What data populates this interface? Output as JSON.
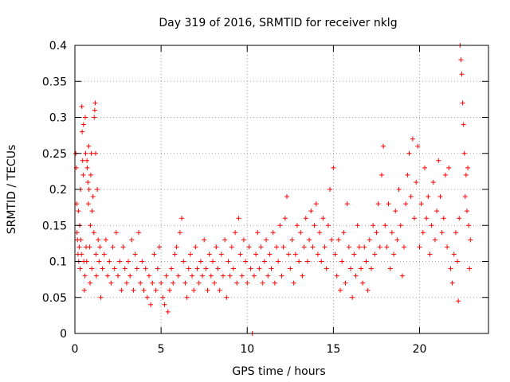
{
  "chart_data": {
    "type": "scatter",
    "title": "Day 319 of 2016, SRMTID for receiver nklg",
    "xlabel": "GPS time / hours",
    "ylabel": "SRMTID / TECUs",
    "xlim": [
      0,
      24
    ],
    "ylim": [
      0,
      0.4
    ],
    "xticks": [
      0,
      5,
      10,
      15,
      20
    ],
    "yticks": [
      0,
      0.05,
      0.1,
      0.15,
      0.2,
      0.25,
      0.3,
      0.35,
      0.4
    ],
    "xtick_labels": [
      "0",
      "5",
      "10",
      "15",
      "20"
    ],
    "ytick_labels": [
      "0",
      "0.05",
      "0.1",
      "0.15",
      "0.2",
      "0.25",
      "0.3",
      "0.35",
      "0.4"
    ],
    "grid": true,
    "marker": "+",
    "color": "#ff0000",
    "series": [
      {
        "name": "SRMTID",
        "points": [
          [
            0.05,
            0.25
          ],
          [
            0.08,
            0.23
          ],
          [
            0.1,
            0.18
          ],
          [
            0.12,
            0.14
          ],
          [
            0.15,
            0.13
          ],
          [
            0.18,
            0.11
          ],
          [
            0.2,
            0.17
          ],
          [
            0.22,
            0.1
          ],
          [
            0.25,
            0.12
          ],
          [
            0.28,
            0.15
          ],
          [
            0.3,
            0.09
          ],
          [
            0.33,
            0.2
          ],
          [
            0.35,
            0.13
          ],
          [
            0.38,
            0.11
          ],
          [
            0.4,
            0.315
          ],
          [
            0.42,
            0.28
          ],
          [
            0.45,
            0.24
          ],
          [
            0.48,
            0.22
          ],
          [
            0.5,
            0.29
          ],
          [
            0.52,
            0.1
          ],
          [
            0.55,
            0.06
          ],
          [
            0.58,
            0.08
          ],
          [
            0.6,
            0.3
          ],
          [
            0.62,
            0.25
          ],
          [
            0.65,
            0.12
          ],
          [
            0.68,
            0.1
          ],
          [
            0.7,
            0.24
          ],
          [
            0.72,
            0.23
          ],
          [
            0.75,
            0.21
          ],
          [
            0.78,
            0.18
          ],
          [
            0.8,
            0.26
          ],
          [
            0.82,
            0.2
          ],
          [
            0.85,
            0.12
          ],
          [
            0.88,
            0.07
          ],
          [
            0.9,
            0.15
          ],
          [
            0.92,
            0.22
          ],
          [
            0.95,
            0.25
          ],
          [
            0.98,
            0.09
          ],
          [
            1.0,
            0.17
          ],
          [
            1.05,
            0.19
          ],
          [
            1.1,
            0.14
          ],
          [
            1.12,
            0.3
          ],
          [
            1.15,
            0.31
          ],
          [
            1.18,
            0.32
          ],
          [
            1.2,
            0.25
          ],
          [
            1.22,
            0.11
          ],
          [
            1.25,
            0.08
          ],
          [
            1.3,
            0.2
          ],
          [
            1.35,
            0.13
          ],
          [
            1.4,
            0.1
          ],
          [
            1.45,
            0.12
          ],
          [
            1.5,
            0.05
          ],
          [
            1.6,
            0.09
          ],
          [
            1.7,
            0.11
          ],
          [
            1.8,
            0.13
          ],
          [
            1.9,
            0.08
          ],
          [
            2.0,
            0.1
          ],
          [
            2.1,
            0.07
          ],
          [
            2.2,
            0.12
          ],
          [
            2.3,
            0.09
          ],
          [
            2.4,
            0.14
          ],
          [
            2.5,
            0.08
          ],
          [
            2.6,
            0.1
          ],
          [
            2.7,
            0.06
          ],
          [
            2.8,
            0.12
          ],
          [
            2.9,
            0.09
          ],
          [
            3.0,
            0.07
          ],
          [
            3.1,
            0.1
          ],
          [
            3.2,
            0.08
          ],
          [
            3.3,
            0.13
          ],
          [
            3.4,
            0.06
          ],
          [
            3.5,
            0.11
          ],
          [
            3.6,
            0.09
          ],
          [
            3.7,
            0.14
          ],
          [
            3.8,
            0.07
          ],
          [
            3.9,
            0.1
          ],
          [
            4.0,
            0.06
          ],
          [
            4.1,
            0.09
          ],
          [
            4.2,
            0.05
          ],
          [
            4.3,
            0.08
          ],
          [
            4.4,
            0.04
          ],
          [
            4.5,
            0.07
          ],
          [
            4.6,
            0.11
          ],
          [
            4.7,
            0.06
          ],
          [
            4.8,
            0.09
          ],
          [
            4.9,
            0.12
          ],
          [
            5.0,
            0.07
          ],
          [
            5.1,
            0.05
          ],
          [
            5.2,
            0.04
          ],
          [
            5.3,
            0.08
          ],
          [
            5.4,
            0.03
          ],
          [
            5.5,
            0.06
          ],
          [
            5.6,
            0.09
          ],
          [
            5.7,
            0.07
          ],
          [
            5.8,
            0.11
          ],
          [
            5.9,
            0.12
          ],
          [
            6.0,
            0.08
          ],
          [
            6.1,
            0.14
          ],
          [
            6.2,
            0.16
          ],
          [
            6.3,
            0.1
          ],
          [
            6.4,
            0.07
          ],
          [
            6.5,
            0.05
          ],
          [
            6.6,
            0.09
          ],
          [
            6.7,
            0.11
          ],
          [
            6.8,
            0.08
          ],
          [
            6.9,
            0.06
          ],
          [
            7.0,
            0.12
          ],
          [
            7.1,
            0.09
          ],
          [
            7.2,
            0.07
          ],
          [
            7.3,
            0.1
          ],
          [
            7.4,
            0.08
          ],
          [
            7.5,
            0.13
          ],
          [
            7.6,
            0.09
          ],
          [
            7.7,
            0.06
          ],
          [
            7.8,
            0.11
          ],
          [
            7.9,
            0.08
          ],
          [
            8.0,
            0.1
          ],
          [
            8.1,
            0.07
          ],
          [
            8.2,
            0.12
          ],
          [
            8.3,
            0.09
          ],
          [
            8.4,
            0.06
          ],
          [
            8.5,
            0.11
          ],
          [
            8.6,
            0.08
          ],
          [
            8.7,
            0.13
          ],
          [
            8.8,
            0.05
          ],
          [
            8.9,
            0.1
          ],
          [
            9.0,
            0.08
          ],
          [
            9.1,
            0.12
          ],
          [
            9.2,
            0.09
          ],
          [
            9.3,
            0.14
          ],
          [
            9.4,
            0.07
          ],
          [
            9.5,
            0.16
          ],
          [
            9.6,
            0.11
          ],
          [
            9.7,
            0.08
          ],
          [
            9.8,
            0.13
          ],
          [
            9.9,
            0.1
          ],
          [
            10.0,
            0.07
          ],
          [
            10.1,
            0.12
          ],
          [
            10.2,
            0.09
          ],
          [
            10.3,
            0.0
          ],
          [
            10.4,
            0.08
          ],
          [
            10.5,
            0.11
          ],
          [
            10.6,
            0.14
          ],
          [
            10.7,
            0.09
          ],
          [
            10.8,
            0.12
          ],
          [
            10.9,
            0.07
          ],
          [
            11.0,
            0.1
          ],
          [
            11.1,
            0.13
          ],
          [
            11.2,
            0.08
          ],
          [
            11.3,
            0.11
          ],
          [
            11.4,
            0.09
          ],
          [
            11.5,
            0.14
          ],
          [
            11.6,
            0.07
          ],
          [
            11.7,
            0.12
          ],
          [
            11.8,
            0.1
          ],
          [
            11.9,
            0.15
          ],
          [
            12.0,
            0.08
          ],
          [
            12.1,
            0.12
          ],
          [
            12.2,
            0.16
          ],
          [
            12.3,
            0.19
          ],
          [
            12.4,
            0.11
          ],
          [
            12.5,
            0.09
          ],
          [
            12.6,
            0.13
          ],
          [
            12.7,
            0.07
          ],
          [
            12.8,
            0.11
          ],
          [
            12.9,
            0.15
          ],
          [
            13.0,
            0.1
          ],
          [
            13.1,
            0.14
          ],
          [
            13.2,
            0.08
          ],
          [
            13.3,
            0.12
          ],
          [
            13.4,
            0.16
          ],
          [
            13.5,
            0.1
          ],
          [
            13.6,
            0.13
          ],
          [
            13.7,
            0.17
          ],
          [
            13.8,
            0.12
          ],
          [
            13.9,
            0.15
          ],
          [
            14.0,
            0.18
          ],
          [
            14.1,
            0.11
          ],
          [
            14.2,
            0.14
          ],
          [
            14.3,
            0.1
          ],
          [
            14.4,
            0.16
          ],
          [
            14.5,
            0.12
          ],
          [
            14.6,
            0.09
          ],
          [
            14.7,
            0.15
          ],
          [
            14.8,
            0.2
          ],
          [
            14.9,
            0.13
          ],
          [
            15.0,
            0.23
          ],
          [
            15.1,
            0.11
          ],
          [
            15.2,
            0.08
          ],
          [
            15.3,
            0.13
          ],
          [
            15.4,
            0.06
          ],
          [
            15.5,
            0.1
          ],
          [
            15.6,
            0.14
          ],
          [
            15.7,
            0.07
          ],
          [
            15.8,
            0.18
          ],
          [
            15.9,
            0.12
          ],
          [
            16.0,
            0.09
          ],
          [
            16.1,
            0.05
          ],
          [
            16.2,
            0.11
          ],
          [
            16.3,
            0.08
          ],
          [
            16.4,
            0.15
          ],
          [
            16.5,
            0.12
          ],
          [
            16.6,
            0.09
          ],
          [
            16.7,
            0.07
          ],
          [
            16.8,
            0.12
          ],
          [
            16.9,
            0.1
          ],
          [
            17.0,
            0.06
          ],
          [
            17.1,
            0.13
          ],
          [
            17.2,
            0.09
          ],
          [
            17.3,
            0.15
          ],
          [
            17.4,
            0.11
          ],
          [
            17.5,
            0.14
          ],
          [
            17.6,
            0.18
          ],
          [
            17.7,
            0.12
          ],
          [
            17.8,
            0.22
          ],
          [
            17.9,
            0.26
          ],
          [
            18.0,
            0.15
          ],
          [
            18.1,
            0.12
          ],
          [
            18.2,
            0.18
          ],
          [
            18.3,
            0.09
          ],
          [
            18.4,
            0.14
          ],
          [
            18.5,
            0.11
          ],
          [
            18.6,
            0.17
          ],
          [
            18.7,
            0.13
          ],
          [
            18.8,
            0.2
          ],
          [
            18.9,
            0.15
          ],
          [
            19.0,
            0.08
          ],
          [
            19.1,
            0.12
          ],
          [
            19.2,
            0.18
          ],
          [
            19.3,
            0.22
          ],
          [
            19.4,
            0.25
          ],
          [
            19.5,
            0.19
          ],
          [
            19.6,
            0.27
          ],
          [
            19.7,
            0.16
          ],
          [
            19.8,
            0.21
          ],
          [
            19.9,
            0.26
          ],
          [
            20.0,
            0.12
          ],
          [
            20.1,
            0.18
          ],
          [
            20.2,
            0.14
          ],
          [
            20.3,
            0.23
          ],
          [
            20.4,
            0.16
          ],
          [
            20.5,
            0.19
          ],
          [
            20.6,
            0.11
          ],
          [
            20.7,
            0.15
          ],
          [
            20.8,
            0.21
          ],
          [
            20.9,
            0.13
          ],
          [
            21.0,
            0.17
          ],
          [
            21.1,
            0.24
          ],
          [
            21.2,
            0.19
          ],
          [
            21.3,
            0.14
          ],
          [
            21.4,
            0.16
          ],
          [
            21.5,
            0.22
          ],
          [
            21.6,
            0.12
          ],
          [
            21.7,
            0.23
          ],
          [
            21.8,
            0.09
          ],
          [
            21.9,
            0.07
          ],
          [
            22.0,
            0.11
          ],
          [
            22.1,
            0.14
          ],
          [
            22.2,
            0.1
          ],
          [
            22.25,
            0.045
          ],
          [
            22.3,
            0.16
          ],
          [
            22.35,
            0.4
          ],
          [
            22.4,
            0.38
          ],
          [
            22.45,
            0.36
          ],
          [
            22.5,
            0.32
          ],
          [
            22.55,
            0.29
          ],
          [
            22.6,
            0.25
          ],
          [
            22.65,
            0.19
          ],
          [
            22.7,
            0.22
          ],
          [
            22.75,
            0.17
          ],
          [
            22.8,
            0.23
          ],
          [
            22.85,
            0.15
          ],
          [
            22.9,
            0.09
          ],
          [
            22.95,
            0.13
          ]
        ]
      }
    ]
  }
}
